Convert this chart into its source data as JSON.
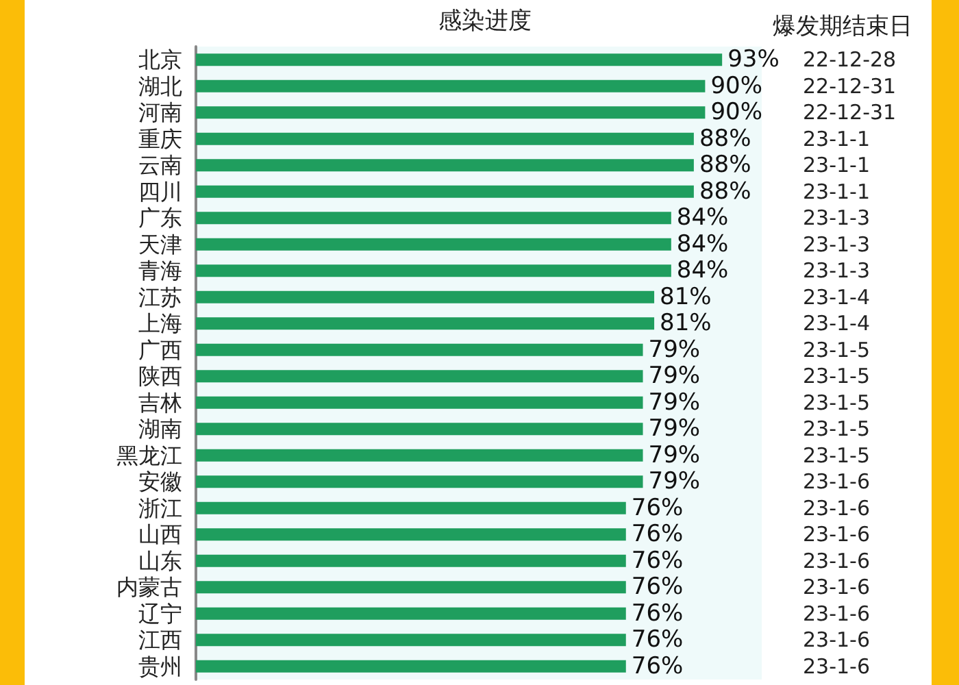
{
  "chart_data": {
    "type": "bar",
    "orientation": "horizontal",
    "title": "感染进度",
    "y2label": "爆发期结束日",
    "categories": [
      "北京",
      "湖北",
      "河南",
      "重庆",
      "云南",
      "四川",
      "广东",
      "天津",
      "青海",
      "江苏",
      "上海",
      "广西",
      "陕西",
      "吉林",
      "湖南",
      "黑龙江",
      "安徽",
      "浙江",
      "山西",
      "山东",
      "内蒙古",
      "辽宁",
      "江西",
      "贵州"
    ],
    "y2_categories": [
      "22-12-28",
      "22-12-31",
      "22-12-31",
      "23-1-1",
      "23-1-1",
      "23-1-1",
      "23-1-3",
      "23-1-3",
      "23-1-3",
      "23-1-4",
      "23-1-4",
      "23-1-5",
      "23-1-5",
      "23-1-5",
      "23-1-5",
      "23-1-5",
      "23-1-6",
      "23-1-6",
      "23-1-6",
      "23-1-6",
      "23-1-6",
      "23-1-6",
      "23-1-6",
      "23-1-6"
    ],
    "values": [
      93,
      90,
      90,
      88,
      88,
      88,
      84,
      84,
      84,
      81,
      81,
      79,
      79,
      79,
      79,
      79,
      79,
      76,
      76,
      76,
      76,
      76,
      76,
      76
    ],
    "value_labels": [
      "93%",
      "90%",
      "90%",
      "88%",
      "88%",
      "88%",
      "84%",
      "84%",
      "84%",
      "81%",
      "81%",
      "79%",
      "79%",
      "79%",
      "79%",
      "79%",
      "79%",
      "76%",
      "76%",
      "76%",
      "76%",
      "76%",
      "76%",
      "76%"
    ],
    "color": "#1f9e5e",
    "grid": false,
    "tick_labels": "y"
  }
}
